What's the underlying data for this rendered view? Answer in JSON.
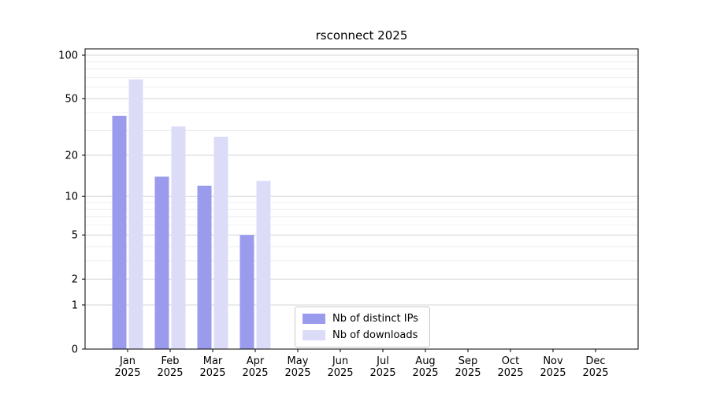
{
  "title": "rsconnect 2025",
  "chart_data": {
    "type": "bar",
    "scale": "log1p",
    "title": "rsconnect 2025",
    "categories": [
      "Jan",
      "Feb",
      "Mar",
      "Apr",
      "May",
      "Jun",
      "Jul",
      "Aug",
      "Sep",
      "Oct",
      "Nov",
      "Dec"
    ],
    "year": "2025",
    "series": [
      {
        "name": "Nb of distinct IPs",
        "color": "#9b9bee",
        "values": [
          38,
          14,
          12,
          5,
          0,
          0,
          0,
          0,
          0,
          0,
          0,
          0
        ]
      },
      {
        "name": "Nb of downloads",
        "color": "#dcdcf8",
        "values": [
          68,
          32,
          27,
          13,
          0,
          0,
          0,
          0,
          0,
          0,
          0,
          0
        ]
      }
    ],
    "yticks": [
      0,
      1,
      2,
      5,
      10,
      20,
      50,
      100
    ],
    "minor_yticks": [
      3,
      4,
      6,
      7,
      8,
      9,
      30,
      40,
      60,
      70,
      80,
      90
    ],
    "ylim": [
      0,
      100
    ],
    "grid": "horizontal",
    "legend_position": "lower-center-inside"
  },
  "colors": {
    "grid_major": "#d6d6d6",
    "grid_minor": "#eaeaea",
    "axis": "#000000",
    "background": "#ffffff"
  }
}
